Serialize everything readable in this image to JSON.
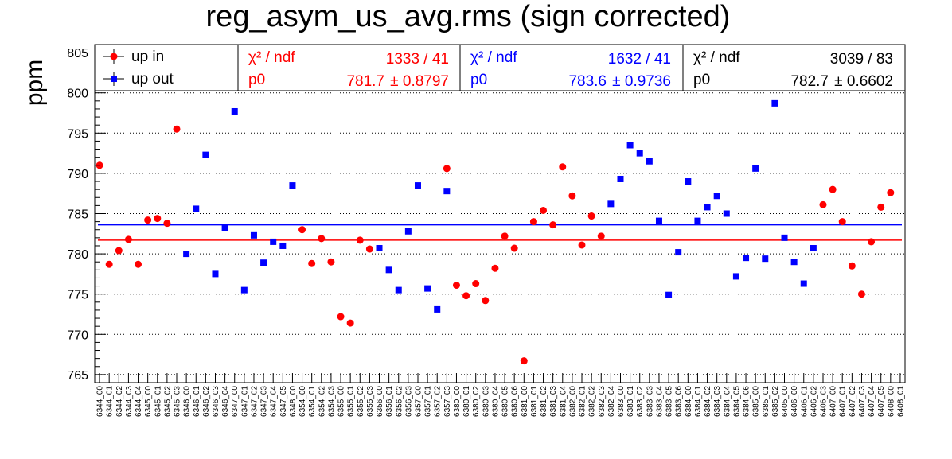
{
  "chart_data": {
    "type": "scatter",
    "title": "reg_asym_us_avg.rms (sign corrected)",
    "ylabel": "ppm",
    "ylim": [
      764,
      806
    ],
    "y_ticks": [
      765,
      770,
      775,
      780,
      785,
      790,
      795,
      800,
      805
    ],
    "grid": "horizontal dotted",
    "categories": [
      "6344_00",
      "6344_01",
      "6344_02",
      "6344_03",
      "6344_04",
      "6345_00",
      "6345_01",
      "6345_02",
      "6345_03",
      "6346_00",
      "6346_01",
      "6346_02",
      "6346_03",
      "6346_04",
      "6347_00",
      "6347_01",
      "6347_02",
      "6347_03",
      "6347_04",
      "6347_05",
      "6348_00",
      "6354_00",
      "6354_01",
      "6354_02",
      "6354_03",
      "6355_00",
      "6355_01",
      "6355_02",
      "6355_03",
      "6356_00",
      "6356_01",
      "6356_02",
      "6356_03",
      "6357_00",
      "6357_01",
      "6357_02",
      "6357_03",
      "6380_00",
      "6380_01",
      "6380_02",
      "6380_03",
      "6380_04",
      "6380_05",
      "6380_06",
      "6381_00",
      "6381_01",
      "6381_02",
      "6381_03",
      "6381_04",
      "6382_00",
      "6382_01",
      "6382_02",
      "6382_03",
      "6382_04",
      "6383_00",
      "6383_01",
      "6383_02",
      "6383_03",
      "6383_04",
      "6383_05",
      "6383_06",
      "6384_00",
      "6384_01",
      "6384_02",
      "6384_03",
      "6384_04",
      "6384_05",
      "6384_06",
      "6385_00",
      "6385_01",
      "6385_02",
      "6405_00",
      "6406_00",
      "6406_01",
      "6406_02",
      "6406_03",
      "6407_00",
      "6407_01",
      "6407_02",
      "6407_03",
      "6407_04",
      "6407_05",
      "6408_00",
      "6408_01"
    ],
    "legend": [
      {
        "name": "up in",
        "color": "#ff0000",
        "marker": "circle"
      },
      {
        "name": "up out",
        "color": "#0000ff",
        "marker": "square"
      }
    ],
    "series": [
      {
        "name": "up in",
        "color": "#ff0000",
        "marker": "circle",
        "points": [
          [
            0,
            791.0
          ],
          [
            1,
            778.7
          ],
          [
            2,
            780.4
          ],
          [
            3,
            781.8
          ],
          [
            4,
            778.7
          ],
          [
            5,
            784.2
          ],
          [
            6,
            784.4
          ],
          [
            7,
            783.8
          ],
          [
            8,
            795.5
          ],
          [
            21,
            783.0
          ],
          [
            22,
            778.8
          ],
          [
            23,
            781.9
          ],
          [
            24,
            779.0
          ],
          [
            25,
            772.2
          ],
          [
            26,
            771.4
          ],
          [
            27,
            781.7
          ],
          [
            28,
            780.6
          ],
          [
            36,
            790.6
          ],
          [
            37,
            776.1
          ],
          [
            38,
            774.8
          ],
          [
            39,
            776.3
          ],
          [
            40,
            774.2
          ],
          [
            41,
            778.2
          ],
          [
            42,
            782.2
          ],
          [
            43,
            780.7
          ],
          [
            44,
            766.7
          ],
          [
            45,
            784.0
          ],
          [
            46,
            785.4
          ],
          [
            47,
            783.6
          ],
          [
            48,
            790.8
          ],
          [
            49,
            787.2
          ],
          [
            50,
            781.1
          ],
          [
            51,
            784.7
          ],
          [
            52,
            782.2
          ],
          [
            75,
            786.1
          ],
          [
            76,
            788.0
          ],
          [
            77,
            784.0
          ],
          [
            78,
            778.5
          ],
          [
            79,
            775.0
          ],
          [
            80,
            781.5
          ],
          [
            81,
            785.8
          ],
          [
            82,
            787.6
          ]
        ]
      },
      {
        "name": "up out",
        "color": "#0000ff",
        "marker": "square",
        "points": [
          [
            9,
            780.0
          ],
          [
            10,
            785.6
          ],
          [
            11,
            792.3
          ],
          [
            12,
            777.5
          ],
          [
            13,
            783.2
          ],
          [
            14,
            797.7
          ],
          [
            15,
            775.5
          ],
          [
            16,
            782.3
          ],
          [
            17,
            778.9
          ],
          [
            18,
            781.5
          ],
          [
            19,
            781.0
          ],
          [
            20,
            788.5
          ],
          [
            29,
            780.7
          ],
          [
            30,
            778.0
          ],
          [
            31,
            775.5
          ],
          [
            32,
            782.8
          ],
          [
            33,
            788.5
          ],
          [
            34,
            775.7
          ],
          [
            35,
            773.1
          ],
          [
            36,
            787.8
          ],
          [
            53,
            786.2
          ],
          [
            54,
            789.3
          ],
          [
            55,
            793.5
          ],
          [
            56,
            792.5
          ],
          [
            57,
            791.5
          ],
          [
            58,
            784.1
          ],
          [
            59,
            774.9
          ],
          [
            60,
            780.2
          ],
          [
            61,
            789.0
          ],
          [
            62,
            784.1
          ],
          [
            63,
            785.8
          ],
          [
            64,
            787.2
          ],
          [
            65,
            785.0
          ],
          [
            66,
            777.2
          ],
          [
            67,
            779.5
          ],
          [
            68,
            790.6
          ],
          [
            69,
            779.4
          ],
          [
            70,
            798.7
          ],
          [
            71,
            782.0
          ],
          [
            72,
            779.0
          ],
          [
            73,
            776.3
          ],
          [
            74,
            780.7
          ]
        ]
      }
    ],
    "fits": [
      {
        "series": "up in",
        "color": "#ff0000",
        "p0": 781.7,
        "err": 0.8797,
        "chi2": 1333,
        "ndf": 41
      },
      {
        "series": "up out",
        "color": "#0000ff",
        "p0": 783.6,
        "err": 0.9736,
        "chi2": 1632,
        "ndf": 41
      },
      {
        "series": "all",
        "color": "#000000",
        "p0": 782.7,
        "err": 0.6602,
        "chi2": 3039,
        "ndf": 83
      }
    ],
    "stat_boxes": [
      {
        "color": "#ff0000",
        "chi_label": "χ² / ndf",
        "chi_value": "1333 / 41",
        "p0_label": "p0",
        "p0_value": "781.7",
        "p0_err": "± 0.8797"
      },
      {
        "color": "#0000ff",
        "chi_label": "χ² / ndf",
        "chi_value": "1632 / 41",
        "p0_label": "p0",
        "p0_value": "783.6",
        "p0_err": "± 0.9736"
      },
      {
        "color": "#000000",
        "chi_label": "χ² / ndf",
        "chi_value": "3039 / 83",
        "p0_label": "p0",
        "p0_value": "782.7",
        "p0_err": "± 0.6602"
      }
    ]
  }
}
